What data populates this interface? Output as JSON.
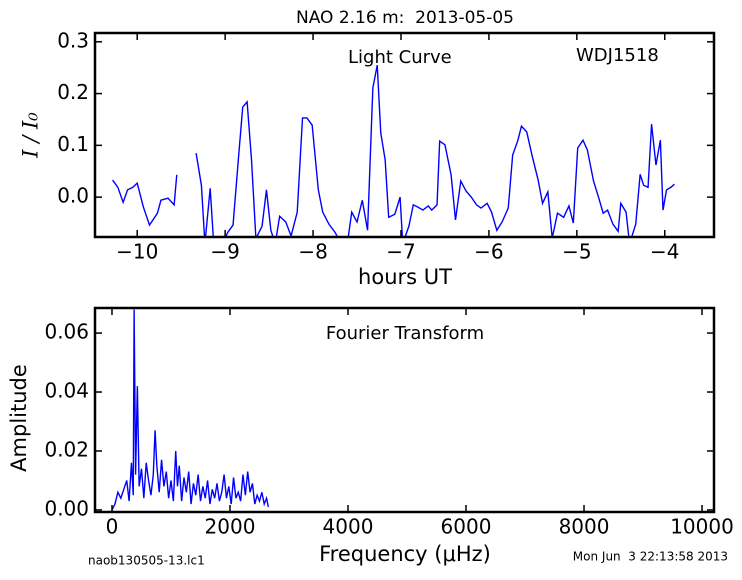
{
  "title": "NAO 2.16 m:  2013-05-05",
  "footer": {
    "file": "naob130505-13.lc1",
    "timestamp": "Mon Jun  3 22:13:58 2013"
  },
  "chart_data": [
    {
      "type": "line",
      "annotations": [
        "Light Curve",
        "WDJ1518"
      ],
      "x_label": "hours UT",
      "y_label": "I / I₀",
      "color": "#0000ff",
      "x": [
        -10.28,
        -10.22,
        -10.16,
        -10.11,
        -10.05,
        -10.0,
        -9.93,
        -9.86,
        -9.77,
        -9.73,
        -9.65,
        -9.58,
        -9.55,
        null,
        -9.33,
        -9.27,
        -9.23,
        -9.17,
        -9.13,
        -9.03,
        -8.97,
        -8.91,
        -8.85,
        -8.8,
        -8.75,
        -8.7,
        -8.65,
        -8.58,
        -8.53,
        -8.48,
        -8.43,
        -8.38,
        -8.31,
        -8.25,
        -8.18,
        -8.12,
        -8.07,
        -8.01,
        -7.94,
        -7.89,
        -7.82,
        -7.75,
        -7.68,
        -7.61,
        -7.56,
        -7.5,
        -7.44,
        -7.38,
        -7.32,
        -7.27,
        -7.23,
        -7.18,
        -7.14,
        -7.07,
        -7.01,
        -6.98,
        -6.91,
        -6.86,
        -6.81,
        -6.75,
        -6.69,
        -6.65,
        -6.59,
        -6.56,
        -6.5,
        -6.43,
        -6.38,
        -6.32,
        -6.26,
        -6.2,
        -6.14,
        -6.09,
        -6.02,
        -5.97,
        -5.91,
        -5.85,
        -5.78,
        -5.73,
        -5.67,
        -5.63,
        -5.57,
        -5.51,
        -5.44,
        -5.39,
        -5.33,
        -5.28,
        -5.22,
        -5.15,
        -5.09,
        -5.04,
        -4.99,
        -4.93,
        -4.88,
        -4.81,
        -4.75,
        -4.7,
        -4.65,
        -4.59,
        -4.53,
        -4.5,
        -4.44,
        -4.4,
        -4.33,
        -4.28,
        -4.24,
        -4.19,
        -4.15,
        -4.1,
        -4.05,
        -4.02,
        -3.98,
        -3.93,
        -3.89
      ],
      "values": [
        0.033,
        0.019,
        -0.01,
        0.014,
        0.019,
        0.027,
        -0.019,
        -0.054,
        -0.031,
        -0.006,
        -0.002,
        -0.015,
        0.043,
        null,
        0.085,
        0.023,
        -0.09,
        0.017,
        -0.09,
        -0.09,
        -0.068,
        -0.054,
        0.072,
        0.174,
        0.184,
        0.072,
        -0.08,
        -0.056,
        0.014,
        -0.064,
        -0.09,
        -0.037,
        -0.048,
        -0.075,
        -0.029,
        0.153,
        0.153,
        0.139,
        0.014,
        -0.029,
        -0.052,
        -0.068,
        -0.09,
        -0.09,
        -0.029,
        -0.048,
        -0.006,
        -0.064,
        0.211,
        0.255,
        0.124,
        0.072,
        -0.039,
        -0.033,
        0.0,
        -0.09,
        -0.056,
        -0.015,
        -0.019,
        -0.025,
        -0.017,
        -0.025,
        -0.015,
        0.108,
        0.101,
        0.043,
        -0.044,
        0.031,
        0.012,
        0.0,
        -0.015,
        -0.021,
        -0.012,
        -0.029,
        -0.064,
        -0.048,
        -0.021,
        0.081,
        0.11,
        0.137,
        0.126,
        0.081,
        0.033,
        -0.012,
        0.01,
        -0.079,
        -0.031,
        -0.039,
        -0.017,
        -0.05,
        0.095,
        0.11,
        0.091,
        0.031,
        -0.002,
        -0.031,
        -0.025,
        -0.052,
        -0.066,
        -0.012,
        -0.029,
        -0.09,
        -0.052,
        0.044,
        0.023,
        0.019,
        0.141,
        0.062,
        0.11,
        -0.025,
        0.014,
        0.019,
        0.025
      ],
      "xlim": [
        -10.48,
        -3.44
      ],
      "ylim": [
        -0.077,
        0.317
      ],
      "xticks": [
        {
          "value": -10,
          "label": "−10"
        },
        {
          "value": -9,
          "label": "−9"
        },
        {
          "value": -8,
          "label": "−8"
        },
        {
          "value": -7,
          "label": "−7"
        },
        {
          "value": -6,
          "label": "−6"
        },
        {
          "value": -5,
          "label": "−5"
        },
        {
          "value": -4,
          "label": "−4"
        }
      ],
      "yticks": [
        {
          "value": 0,
          "label": "0.0"
        },
        0.1,
        0.2,
        0.3
      ]
    },
    {
      "type": "line",
      "annotations": [
        "Fourier Transform"
      ],
      "x_label": "Frequency (μHz)",
      "y_label": "Amplitude",
      "color": "#0000ff",
      "x": [
        0,
        50,
        100,
        150,
        200,
        250,
        290,
        330,
        360,
        375,
        400,
        430,
        460,
        500,
        540,
        580,
        620,
        660,
        700,
        730,
        760,
        800,
        840,
        880,
        920,
        960,
        1000,
        1040,
        1080,
        1110,
        1140,
        1180,
        1220,
        1260,
        1300,
        1340,
        1380,
        1420,
        1460,
        1500,
        1540,
        1580,
        1620,
        1660,
        1700,
        1740,
        1780,
        1820,
        1860,
        1900,
        1940,
        1980,
        2020,
        2060,
        2100,
        2140,
        2180,
        2220,
        2260,
        2300,
        2340,
        2380,
        2420,
        2460,
        2500,
        2540,
        2580,
        2620,
        2650
      ],
      "values": [
        0.0,
        0.002,
        0.006,
        0.004,
        0.007,
        0.01,
        0.003,
        0.016,
        0.005,
        0.068,
        0.012,
        0.042,
        0.008,
        0.014,
        0.004,
        0.016,
        0.01,
        0.005,
        0.012,
        0.027,
        0.015,
        0.006,
        0.017,
        0.008,
        0.013,
        0.004,
        0.01,
        0.003,
        0.02,
        0.008,
        0.015,
        0.003,
        0.011,
        0.006,
        0.013,
        0.002,
        0.009,
        0.005,
        0.012,
        0.003,
        0.008,
        0.004,
        0.01,
        0.002,
        0.007,
        0.004,
        0.009,
        0.003,
        0.006,
        0.012,
        0.004,
        0.008,
        0.002,
        0.011,
        0.004,
        0.006,
        0.003,
        0.012,
        0.005,
        0.013,
        0.006,
        0.009,
        0.002,
        0.005,
        0.003,
        0.006,
        0.002,
        0.004,
        0.001
      ],
      "xlim": [
        -288,
        10203
      ],
      "ylim": [
        -0.0007,
        0.0685
      ],
      "xticks": [
        0,
        2000,
        4000,
        6000,
        8000,
        10000
      ],
      "yticks": [
        {
          "value": 0,
          "label": "0.00"
        },
        0.02,
        0.04,
        0.06
      ]
    }
  ]
}
